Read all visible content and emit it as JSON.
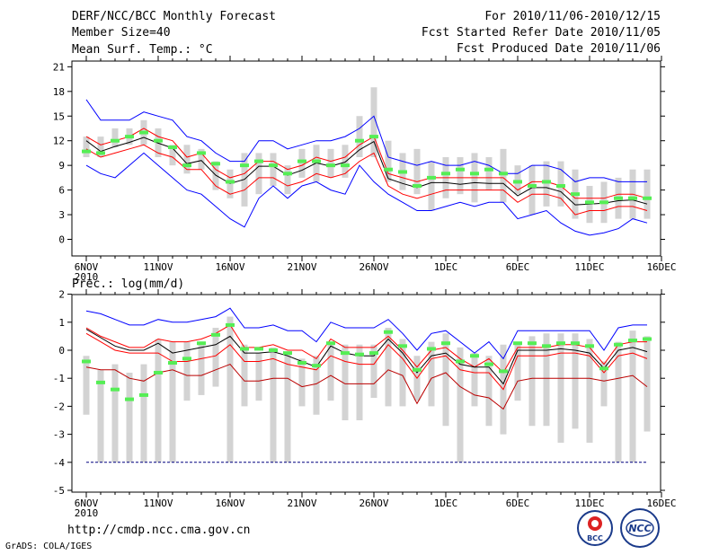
{
  "header": {
    "title": "DERF/NCC/BCC Monthly Forecast",
    "member_size": "Member Size=40",
    "period": "For 2010/11/06-2010/12/15",
    "refer_date": "Fcst Started Refer Date 2010/11/05",
    "produced_date": "Fcst Produced Date 2010/11/06"
  },
  "footer": {
    "url": "http://cmdp.ncc.cma.gov.cn",
    "credit": "GrADS: COLA/IGES",
    "logo_left_text": "BCC",
    "logo_right_text": "NCC"
  },
  "colors": {
    "spread_line": "#0000ff",
    "mean_line": "#000000",
    "anomaly_line": "#ff0000",
    "member_box": "#d3d3d3",
    "observed_marker": "#55ee55",
    "floor_line": "#000080"
  },
  "chart_data": [
    {
      "type": "line",
      "title": "Mean Surf. Temp.: °C",
      "ylabel": "°C",
      "ylim": [
        -2,
        22
      ],
      "yticks": [
        0,
        3,
        6,
        9,
        12,
        15,
        18,
        21
      ],
      "xticks": [
        {
          "day": 0,
          "label": "6NOV",
          "sublabel": "2010"
        },
        {
          "day": 5,
          "label": "11NOV"
        },
        {
          "day": 10,
          "label": "16NOV"
        },
        {
          "day": 15,
          "label": "21NOV"
        },
        {
          "day": 20,
          "label": "26NOV"
        },
        {
          "day": 25,
          "label": "1DEC"
        },
        {
          "day": 30,
          "label": "6DEC"
        },
        {
          "day": 35,
          "label": "11DEC"
        },
        {
          "day": 40,
          "label": "16DEC"
        }
      ],
      "days": [
        0,
        1,
        2,
        3,
        4,
        5,
        6,
        7,
        8,
        9,
        10,
        11,
        12,
        13,
        14,
        15,
        16,
        17,
        18,
        19,
        20,
        21,
        22,
        23,
        24,
        25,
        26,
        27,
        28,
        29,
        30,
        31,
        32,
        33,
        34,
        35,
        36,
        37,
        38,
        39
      ],
      "box_low": [
        10.0,
        10.0,
        11.2,
        11.5,
        11.5,
        10.0,
        9.0,
        8.0,
        8.5,
        6.0,
        5.0,
        4.0,
        5.5,
        6.5,
        5.5,
        7.5,
        7.0,
        7.5,
        7.5,
        10.0,
        10.0,
        7.0,
        6.0,
        5.5,
        3.5,
        5.0,
        5.5,
        4.5,
        6.0,
        4.5,
        5.5,
        3.0,
        4.0,
        4.0,
        2.5,
        2.0,
        2.0,
        2.5,
        2.5,
        2.5
      ],
      "box_high": [
        12.5,
        12.5,
        13.5,
        13.5,
        14.5,
        13.5,
        11.5,
        11.5,
        11.0,
        9.5,
        8.5,
        10.5,
        10.5,
        10.5,
        9.0,
        11.0,
        11.5,
        11.0,
        11.5,
        15.0,
        18.5,
        12.0,
        10.5,
        11.0,
        9.5,
        10.0,
        10.0,
        10.5,
        10.0,
        11.0,
        9.0,
        9.0,
        9.5,
        9.5,
        8.5,
        6.5,
        7.0,
        7.5,
        8.5,
        8.5
      ],
      "series": [
        {
          "name": "ensemble max",
          "color": "#0000ff",
          "values": [
            17.0,
            14.5,
            14.5,
            14.5,
            15.5,
            15.0,
            14.5,
            12.5,
            12.0,
            10.5,
            9.5,
            9.5,
            12.0,
            12.0,
            11.0,
            11.5,
            12.0,
            12.0,
            12.5,
            13.5,
            15.0,
            10.0,
            9.5,
            9.0,
            9.5,
            9.0,
            9.0,
            9.5,
            9.0,
            8.0,
            8.0,
            9.0,
            9.0,
            8.5,
            7.0,
            7.5,
            7.5,
            7.0,
            7.0,
            7.0
          ]
        },
        {
          "name": "upper anomaly",
          "color": "#ff0000",
          "values": [
            12.5,
            11.5,
            12.0,
            12.5,
            13.5,
            12.5,
            12.0,
            10.0,
            10.5,
            8.5,
            7.5,
            8.0,
            9.5,
            9.5,
            8.5,
            9.0,
            10.0,
            9.5,
            10.0,
            11.5,
            12.5,
            8.0,
            7.5,
            7.0,
            7.5,
            7.5,
            7.5,
            7.5,
            7.5,
            7.5,
            6.0,
            7.0,
            7.0,
            6.5,
            5.0,
            5.0,
            5.0,
            5.5,
            5.5,
            5.0
          ]
        },
        {
          "name": "ensemble mean",
          "color": "#000000",
          "values": [
            12.0,
            10.7,
            11.3,
            11.8,
            12.4,
            11.7,
            11.1,
            9.2,
            9.6,
            7.8,
            6.8,
            7.3,
            8.9,
            8.9,
            7.8,
            8.4,
            9.3,
            8.9,
            9.4,
            10.9,
            11.9,
            7.4,
            6.8,
            6.3,
            6.9,
            6.9,
            6.7,
            6.9,
            6.8,
            6.8,
            5.3,
            6.3,
            6.3,
            5.8,
            4.2,
            4.3,
            4.4,
            4.7,
            4.8,
            4.3
          ]
        },
        {
          "name": "lower anomaly",
          "color": "#ff0000",
          "values": [
            11.0,
            10.0,
            10.5,
            11.0,
            11.5,
            10.5,
            10.0,
            8.5,
            8.5,
            6.5,
            5.5,
            6.0,
            7.5,
            7.5,
            6.5,
            7.0,
            8.0,
            7.5,
            8.0,
            9.5,
            10.5,
            6.5,
            5.5,
            5.0,
            5.5,
            6.0,
            6.0,
            6.0,
            6.0,
            6.0,
            4.5,
            5.5,
            5.5,
            5.0,
            3.0,
            3.5,
            3.5,
            4.0,
            4.0,
            3.5
          ]
        },
        {
          "name": "ensemble min",
          "color": "#0000ff",
          "values": [
            9.0,
            8.0,
            7.5,
            9.0,
            10.5,
            9.0,
            7.5,
            6.0,
            5.5,
            4.0,
            2.5,
            1.5,
            5.0,
            6.5,
            5.0,
            6.5,
            7.0,
            6.0,
            5.5,
            9.0,
            7.0,
            5.5,
            4.5,
            3.5,
            3.5,
            4.0,
            4.5,
            4.0,
            4.5,
            4.5,
            2.5,
            3.0,
            3.5,
            2.0,
            1.0,
            0.5,
            0.8,
            1.3,
            2.5,
            2.0
          ]
        }
      ],
      "markers": {
        "name": "observed",
        "color": "#55ee55",
        "values": [
          10.7,
          10.5,
          12.0,
          12.5,
          13.0,
          12.0,
          11.2,
          9.0,
          10.5,
          9.2,
          7.0,
          9.0,
          9.5,
          9.0,
          8.0,
          9.5,
          9.5,
          9.0,
          9.0,
          12.0,
          12.5,
          8.5,
          8.2,
          6.5,
          7.5,
          8.0,
          8.5,
          8.0,
          8.5,
          8.0,
          7.0,
          6.5,
          7.0,
          6.5,
          5.5,
          4.5,
          4.5,
          5.0,
          5.0,
          5.0
        ]
      }
    },
    {
      "type": "line",
      "title": "Prec.: log(mm/d)",
      "ylabel": "log(mm/d)",
      "ylim": [
        -5,
        2
      ],
      "yticks": [
        -5,
        -4,
        -3,
        -2,
        -1,
        0,
        1,
        2
      ],
      "xticks": [
        {
          "day": 0,
          "label": "6NOV",
          "sublabel": "2010"
        },
        {
          "day": 5,
          "label": "11NOV"
        },
        {
          "day": 10,
          "label": "16NOV"
        },
        {
          "day": 15,
          "label": "21NOV"
        },
        {
          "day": 20,
          "label": "26NOV"
        },
        {
          "day": 25,
          "label": "1DEC"
        },
        {
          "day": 30,
          "label": "6DEC"
        },
        {
          "day": 35,
          "label": "11DEC"
        },
        {
          "day": 40,
          "label": "16DEC"
        }
      ],
      "days": [
        0,
        1,
        2,
        3,
        4,
        5,
        6,
        7,
        8,
        9,
        10,
        11,
        12,
        13,
        14,
        15,
        16,
        17,
        18,
        19,
        20,
        21,
        22,
        23,
        24,
        25,
        26,
        27,
        28,
        29,
        30,
        31,
        32,
        33,
        34,
        35,
        36,
        37,
        38,
        39
      ],
      "floor": -4,
      "box_low": [
        -2.3,
        -4.0,
        -4.0,
        -4.0,
        -4.0,
        -4.0,
        -4.0,
        -1.8,
        -1.6,
        -1.3,
        -4.0,
        -2.0,
        -1.8,
        -4.0,
        -4.0,
        -2.0,
        -2.3,
        -1.8,
        -2.5,
        -2.5,
        -1.7,
        -2.0,
        -2.0,
        -1.8,
        -2.0,
        -2.7,
        -4.0,
        -2.0,
        -2.7,
        -3.0,
        -1.8,
        -2.7,
        -2.7,
        -3.3,
        -2.8,
        -3.3,
        -2.0,
        -4.0,
        -4.0,
        -2.9
      ],
      "box_high": [
        -0.2,
        -0.7,
        -0.5,
        -0.8,
        -0.5,
        0.4,
        0.3,
        0.3,
        0.3,
        0.8,
        1.2,
        0.2,
        -0.1,
        0.1,
        -0.1,
        -0.3,
        -0.2,
        0.3,
        0.2,
        0.2,
        0.2,
        0.8,
        0.4,
        -0.2,
        0.3,
        0.6,
        0.1,
        -0.1,
        -0.2,
        0.2,
        0.3,
        0.5,
        0.6,
        0.6,
        0.6,
        0.4,
        -0.4,
        0.3,
        0.7,
        0.5
      ],
      "series": [
        {
          "name": "ensemble max",
          "color": "#0000ff",
          "values": [
            1.4,
            1.3,
            1.1,
            0.9,
            0.9,
            1.1,
            1.0,
            1.0,
            1.1,
            1.2,
            1.5,
            0.8,
            0.8,
            0.9,
            0.7,
            0.7,
            0.3,
            1.0,
            0.8,
            0.8,
            0.8,
            1.1,
            0.6,
            0.0,
            0.6,
            0.7,
            0.3,
            -0.1,
            0.3,
            -0.3,
            0.7,
            0.7,
            0.7,
            0.7,
            0.7,
            0.7,
            0.0,
            0.8,
            0.9,
            0.9
          ]
        },
        {
          "name": "upper anomaly",
          "color": "#ff0000",
          "values": [
            0.8,
            0.5,
            0.3,
            0.1,
            0.1,
            0.4,
            0.3,
            0.3,
            0.4,
            0.6,
            0.9,
            0.1,
            0.1,
            0.2,
            0.0,
            0.0,
            -0.3,
            0.4,
            0.1,
            0.1,
            0.1,
            0.5,
            0.0,
            -0.6,
            0.0,
            0.1,
            -0.3,
            -0.6,
            -0.3,
            -0.8,
            0.1,
            0.1,
            0.1,
            0.2,
            0.2,
            0.1,
            -0.5,
            0.2,
            0.3,
            0.3
          ]
        },
        {
          "name": "ensemble mean",
          "color": "#000000",
          "values": [
            0.75,
            0.45,
            0.15,
            0.0,
            0.0,
            0.25,
            -0.1,
            0.0,
            0.1,
            0.2,
            0.5,
            -0.1,
            -0.1,
            -0.05,
            -0.2,
            -0.4,
            -0.6,
            0.15,
            -0.1,
            -0.2,
            -0.2,
            0.4,
            -0.1,
            -0.8,
            -0.2,
            -0.1,
            -0.5,
            -0.6,
            -0.6,
            -1.2,
            0.0,
            0.0,
            0.0,
            0.05,
            0.0,
            -0.1,
            -0.65,
            0.0,
            0.1,
            -0.05
          ]
        },
        {
          "name": "lower anomaly",
          "color": "#ff0000",
          "values": [
            0.6,
            0.3,
            0.0,
            -0.1,
            -0.1,
            -0.1,
            -0.4,
            -0.4,
            -0.3,
            -0.2,
            0.2,
            -0.4,
            -0.4,
            -0.3,
            -0.5,
            -0.6,
            -0.7,
            -0.2,
            -0.4,
            -0.5,
            -0.5,
            0.2,
            -0.3,
            -1.0,
            -0.3,
            -0.2,
            -0.7,
            -0.8,
            -0.8,
            -1.4,
            -0.2,
            -0.2,
            -0.2,
            -0.1,
            -0.1,
            -0.2,
            -0.8,
            -0.2,
            -0.1,
            -0.3
          ]
        },
        {
          "name": "ensemble min",
          "color": "#bb0000",
          "values": [
            -0.6,
            -0.7,
            -0.7,
            -1.0,
            -1.1,
            -0.8,
            -0.7,
            -0.9,
            -0.9,
            -0.7,
            -0.5,
            -1.1,
            -1.1,
            -1.0,
            -1.0,
            -1.3,
            -1.2,
            -0.9,
            -1.2,
            -1.2,
            -1.2,
            -0.7,
            -0.9,
            -1.9,
            -1.0,
            -0.8,
            -1.3,
            -1.6,
            -1.7,
            -2.1,
            -1.1,
            -1.0,
            -1.0,
            -1.0,
            -1.0,
            -1.0,
            -1.1,
            -1.0,
            -0.9,
            -1.3
          ]
        }
      ],
      "markers": {
        "name": "observed",
        "color": "#55ee55",
        "values": [
          -0.4,
          -1.15,
          -1.4,
          -1.75,
          -1.6,
          -0.8,
          -0.45,
          -0.3,
          0.25,
          0.55,
          0.9,
          0.05,
          0.05,
          0.0,
          -0.1,
          -0.45,
          -0.55,
          0.25,
          -0.1,
          -0.15,
          -0.1,
          0.65,
          0.15,
          -0.7,
          0.05,
          0.25,
          -0.4,
          -0.2,
          -0.5,
          -0.75,
          0.25,
          0.25,
          0.15,
          0.25,
          0.25,
          0.15,
          -0.65,
          0.2,
          0.35,
          0.4
        ]
      }
    }
  ]
}
